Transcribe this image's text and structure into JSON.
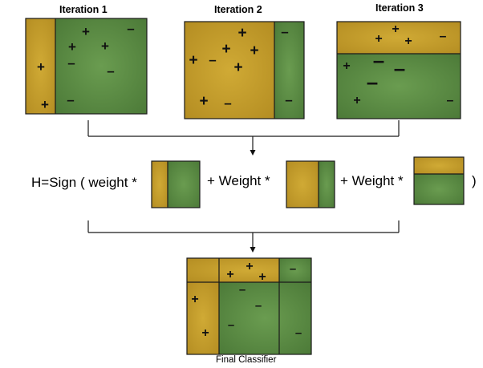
{
  "iterations": [
    {
      "title": "Iteration 1"
    },
    {
      "title": "Iteration 2"
    },
    {
      "title": "Iteration 3"
    }
  ],
  "formula": {
    "prefix": "H=Sign ( weight *",
    "plus_weight_1": "+ Weight *",
    "plus_weight_2": "+ Weight *",
    "suffix": ")"
  },
  "final_caption": "Final Classifier",
  "symbols": {
    "positive": "+",
    "negative": "–"
  },
  "colors": {
    "positive_region": "#c9a22f",
    "negative_region": "#62914a",
    "border": "#1a1a1a"
  }
}
